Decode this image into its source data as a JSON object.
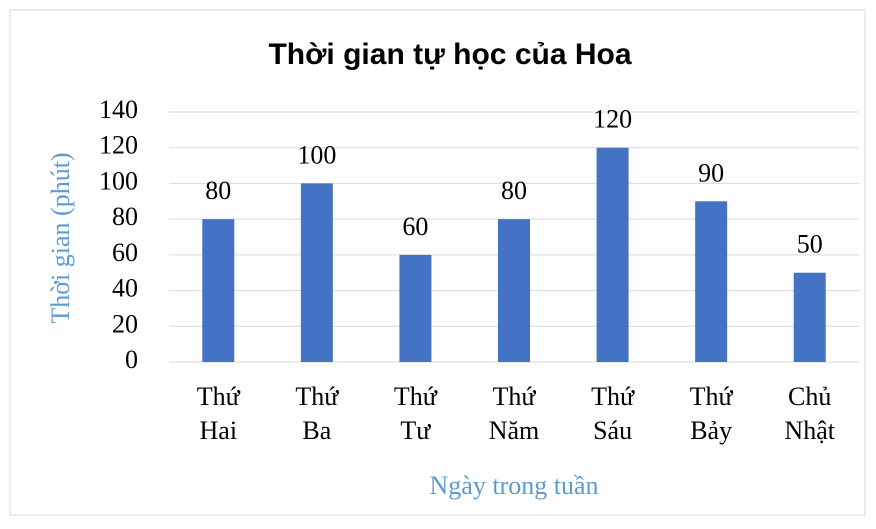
{
  "chart_data": {
    "type": "bar",
    "title": "Thời gian tự học của Hoa",
    "x_label": "Ngày trong tuần",
    "y_label": "Thời gian (phút)",
    "categories": [
      "Thứ Hai",
      "Thứ Ba",
      "Thứ Tư",
      "Thứ Năm",
      "Thứ Sáu",
      "Thứ Bảy",
      "Chủ Nhật"
    ],
    "values": [
      80,
      100,
      60,
      80,
      120,
      90,
      50
    ],
    "color": "#4472c4",
    "ylim": [
      0,
      140
    ],
    "yticks": [
      0,
      20,
      40,
      60,
      80,
      100,
      120,
      140
    ],
    "grid": true,
    "data_labels": true
  }
}
